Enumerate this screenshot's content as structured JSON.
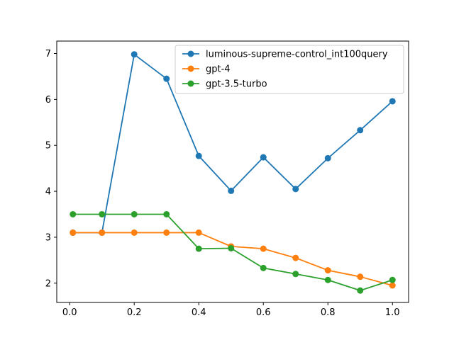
{
  "chart_data": {
    "type": "line",
    "title": "",
    "xlabel": "",
    "ylabel": "",
    "xlim": [
      -0.04,
      1.05
    ],
    "ylim": [
      1.58,
      7.27
    ],
    "xticks": [
      0.0,
      0.2,
      0.4,
      0.6,
      0.8,
      1.0
    ],
    "xtick_labels": [
      "0.0",
      "0.2",
      "0.4",
      "0.6",
      "0.8",
      "1.0"
    ],
    "yticks": [
      2,
      3,
      4,
      5,
      6,
      7
    ],
    "ytick_labels": [
      "2",
      "3",
      "4",
      "5",
      "6",
      "7"
    ],
    "grid": false,
    "legend_position": "upper right",
    "x": [
      0.01,
      0.1,
      0.2,
      0.3,
      0.4,
      0.5,
      0.6,
      0.7,
      0.8,
      0.9,
      1.0
    ],
    "series": [
      {
        "name": "luminous-supreme-control_int100query",
        "color": "#1f77b4",
        "values": [
          3.1,
          3.1,
          6.98,
          6.45,
          4.77,
          4.01,
          4.74,
          4.05,
          4.72,
          5.33,
          5.96
        ]
      },
      {
        "name": "gpt-4",
        "color": "#ff7f0e",
        "values": [
          3.1,
          3.1,
          3.1,
          3.1,
          3.1,
          2.8,
          2.75,
          2.55,
          2.28,
          2.14,
          1.95
        ]
      },
      {
        "name": "gpt-3.5-turbo",
        "color": "#2ca02c",
        "values": [
          3.5,
          3.5,
          3.5,
          3.5,
          2.75,
          2.76,
          2.33,
          2.2,
          2.07,
          1.84,
          2.07
        ]
      }
    ]
  }
}
